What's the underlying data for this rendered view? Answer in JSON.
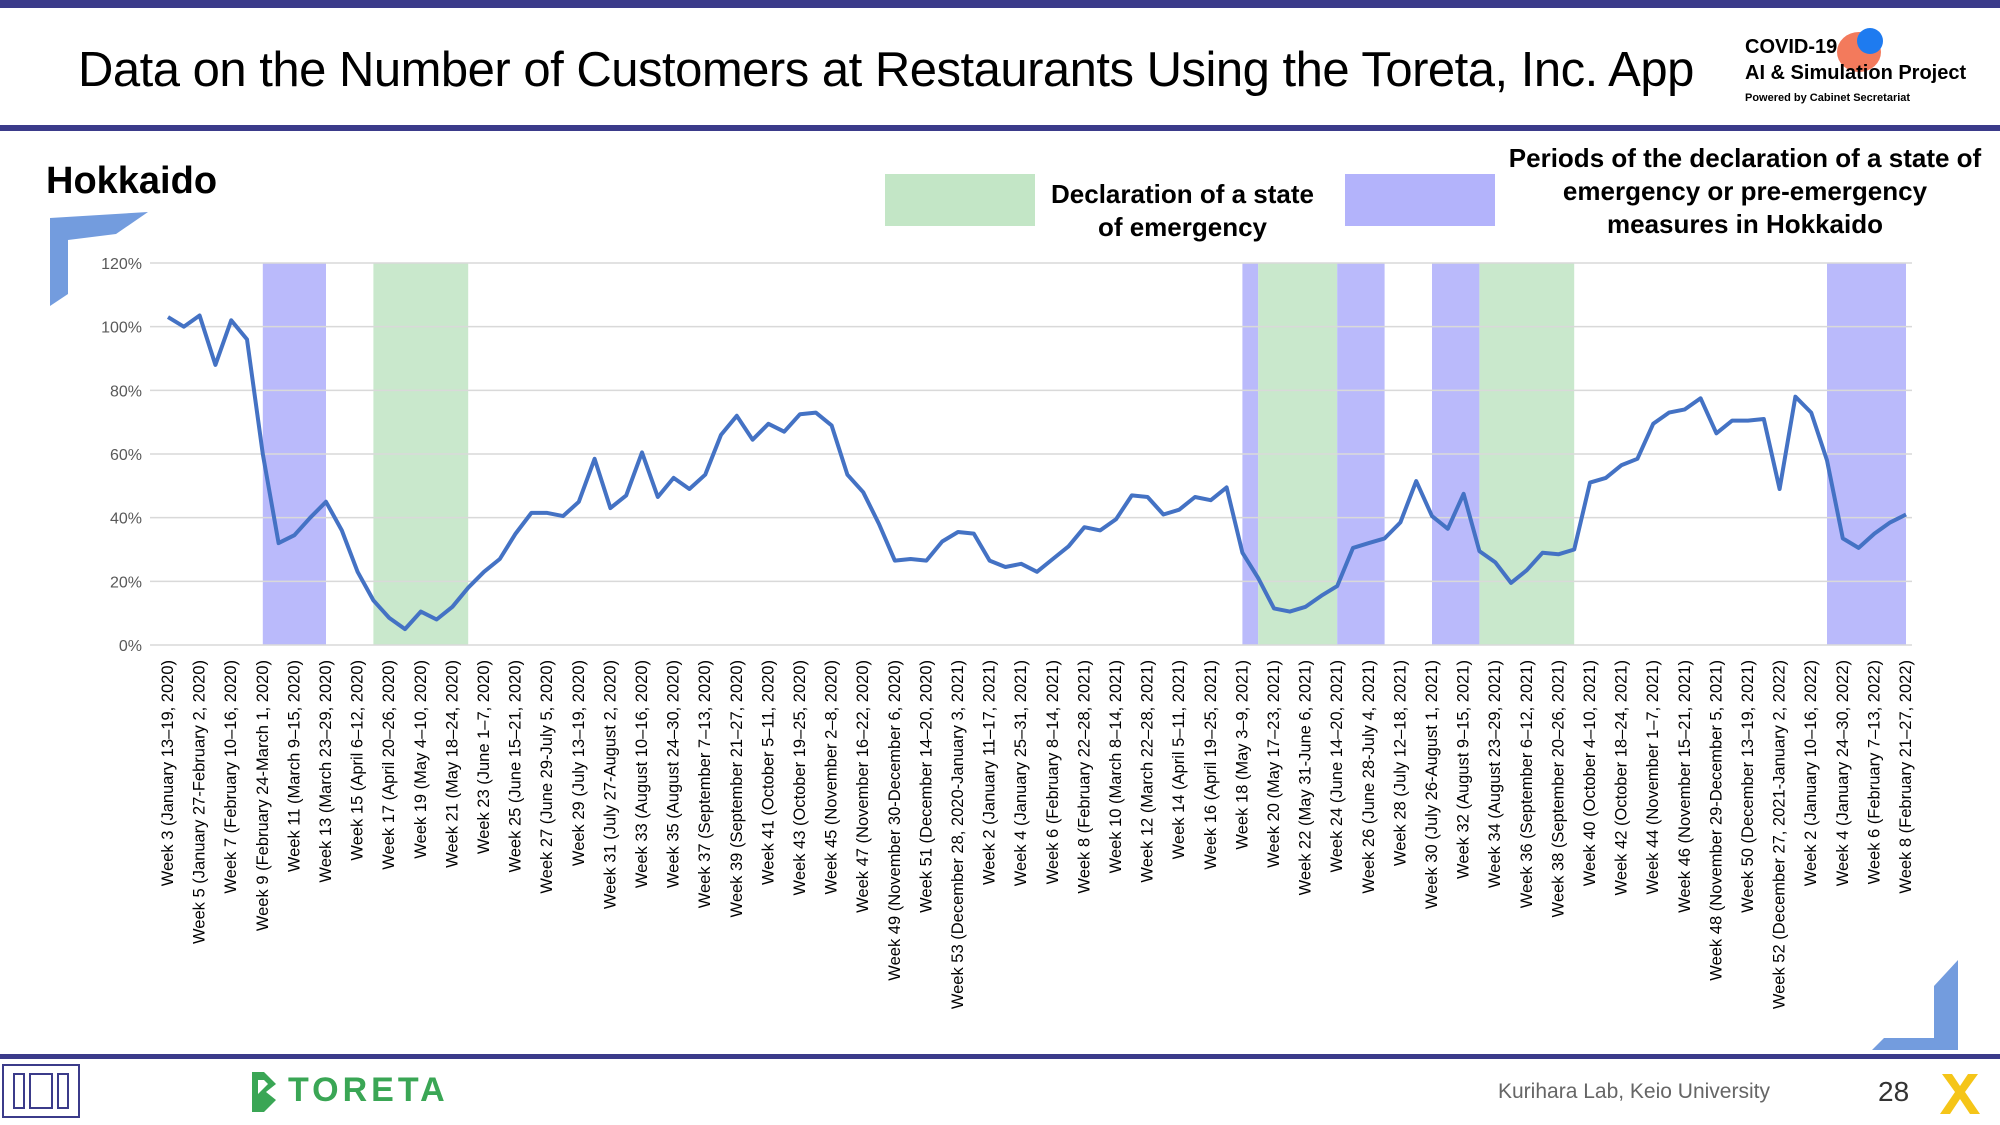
{
  "header": {
    "title": "Data on the Number of Customers at Restaurants Using the Toreta, Inc. App",
    "logo": {
      "line1": "COVID-19",
      "line2": "AI & Simulation Project",
      "line3": "Powered by Cabinet Secretariat"
    }
  },
  "region_label": "Hokkaido",
  "legend": {
    "emergency_label": "Declaration of a state of emergency",
    "pre_emergency_label": "Periods of the declaration of a state of emergency or pre-emergency measures in Hokkaido",
    "emergency_color": "#c3e6c6",
    "pre_emergency_color": "#b3b3fb"
  },
  "footer": {
    "company": "TORETA",
    "credit": "Kurihara Lab, Keio University",
    "page_number": "28"
  },
  "colors": {
    "line": "#4472c4",
    "accent": "#3b3b8a",
    "brand_green": "#3aa655"
  },
  "chart_data": {
    "type": "line",
    "ylim": [
      0,
      120
    ],
    "yticks": [
      "0%",
      "20%",
      "40%",
      "60%",
      "80%",
      "100%",
      "120%"
    ],
    "grid": true,
    "x_labels_every_other": [
      "Week 3 (January 13–19, 2020)",
      "Week 5 (January 27-February 2, 2020)",
      "Week 7 (February 10–16, 2020)",
      "Week 9 (February 24-March 1, 2020)",
      "Week 11 (March 9–15, 2020)",
      "Week 13 (March 23–29, 2020)",
      "Week 15 (April 6–12, 2020)",
      "Week 17 (April 20–26, 2020)",
      "Week 19 (May 4–10, 2020)",
      "Week 21 (May 18–24, 2020)",
      "Week 23 (June 1–7, 2020)",
      "Week 25 (June 15–21, 2020)",
      "Week 27 (June 29-July 5, 2020)",
      "Week 29 (July 13–19, 2020)",
      "Week 31 (July 27-August 2, 2020)",
      "Week 33 (August 10–16, 2020)",
      "Week 35 (August 24–30, 2020)",
      "Week 37 (September 7–13, 2020)",
      "Week 39 (September 21–27, 2020)",
      "Week 41 (October 5–11, 2020)",
      "Week 43 (October 19–25, 2020)",
      "Week 45 (November 2–8, 2020)",
      "Week 47 (November 16–22, 2020)",
      "Week 49 (November 30-December 6, 2020)",
      "Week 51 (December 14–20, 2020)",
      "Week 53 (December 28, 2020-January 3, 2021)",
      "Week 2 (January 11–17, 2021)",
      "Week 4 (January 25–31, 2021)",
      "Week 6 (February 8–14, 2021)",
      "Week 8 (February 22–28, 2021)",
      "Week 10 (March 8–14, 2021)",
      "Week 12 (March 22–28, 2021)",
      "Week 14 (April 5–11, 2021)",
      "Week 16 (April 19–25, 2021)",
      "Week 18 (May 3–9, 2021)",
      "Week 20 (May 17–23, 2021)",
      "Week 22 (May 31-June 6, 2021)",
      "Week 24 (June 14–20, 2021)",
      "Week 26 (June 28-July 4, 2021)",
      "Week 28 (July 12–18, 2021)",
      "Week 30 (July 26-August 1, 2021)",
      "Week 32 (August 9–15, 2021)",
      "Week 34 (August 23–29, 2021)",
      "Week 36 (September 6–12, 2021)",
      "Week 38 (September 20–26, 2021)",
      "Week 40 (October 4–10, 2021)",
      "Week 42 (October 18–24, 2021)",
      "Week 44 (November 1–7, 2021)",
      "Week 46 (November 15–21, 2021)",
      "Week 48 (November 29-December 5, 2021)",
      "Week 50 (December 13–19, 2021)",
      "Week 52 (December 27, 2021-January 2, 2022)",
      "Week 2 (January 10–16, 2022)",
      "Week 4 (January 24–30, 2022)",
      "Week 6 (February 7–13, 2022)",
      "Week 8 (February 21–27, 2022)"
    ],
    "series": [
      {
        "values": [
          103,
          100,
          103.5,
          88,
          102,
          96,
          60,
          32,
          34.5,
          40,
          45,
          36,
          23,
          14,
          8.5,
          5,
          10.5,
          8,
          12,
          18,
          23,
          27,
          35,
          41.5,
          41.5,
          40.5,
          45,
          58.5,
          43,
          47,
          60.5,
          46.5,
          52.5,
          49,
          53.5,
          66,
          72,
          64.5,
          69.5,
          67,
          72.5,
          73,
          69,
          53.5,
          48,
          38,
          26.5,
          27,
          26.5,
          32.5,
          35.5,
          35,
          26.5,
          24.5,
          25.5,
          23,
          27,
          31,
          37,
          36,
          39.5,
          47,
          46.5,
          41,
          42.5,
          46.5,
          45.5,
          49.5,
          29,
          21,
          11.5,
          10.5,
          12,
          15.5,
          18.5,
          30.5,
          32,
          33.5,
          38.5,
          51.5,
          40.5,
          36.5,
          47.5,
          29.5,
          26,
          19.5,
          23.5,
          29,
          28.5,
          30,
          51,
          52.5,
          56.5,
          58.5,
          69.5,
          73,
          74,
          77.5,
          66.5,
          70.5,
          70.5,
          71,
          49,
          78,
          73,
          58,
          33.5,
          30.5,
          35,
          38.5,
          41
        ]
      }
    ],
    "shaded_periods": [
      {
        "type": "pre_emergency",
        "start": 6,
        "end": 10
      },
      {
        "type": "emergency",
        "start": 13,
        "end": 19
      },
      {
        "type": "pre_emergency",
        "start": 68,
        "end": 69
      },
      {
        "type": "emergency",
        "start": 69,
        "end": 74
      },
      {
        "type": "pre_emergency",
        "start": 74,
        "end": 77
      },
      {
        "type": "pre_emergency",
        "start": 80,
        "end": 83
      },
      {
        "type": "emergency",
        "start": 83,
        "end": 89
      },
      {
        "type": "pre_emergency",
        "start": 105,
        "end": 110
      }
    ]
  }
}
